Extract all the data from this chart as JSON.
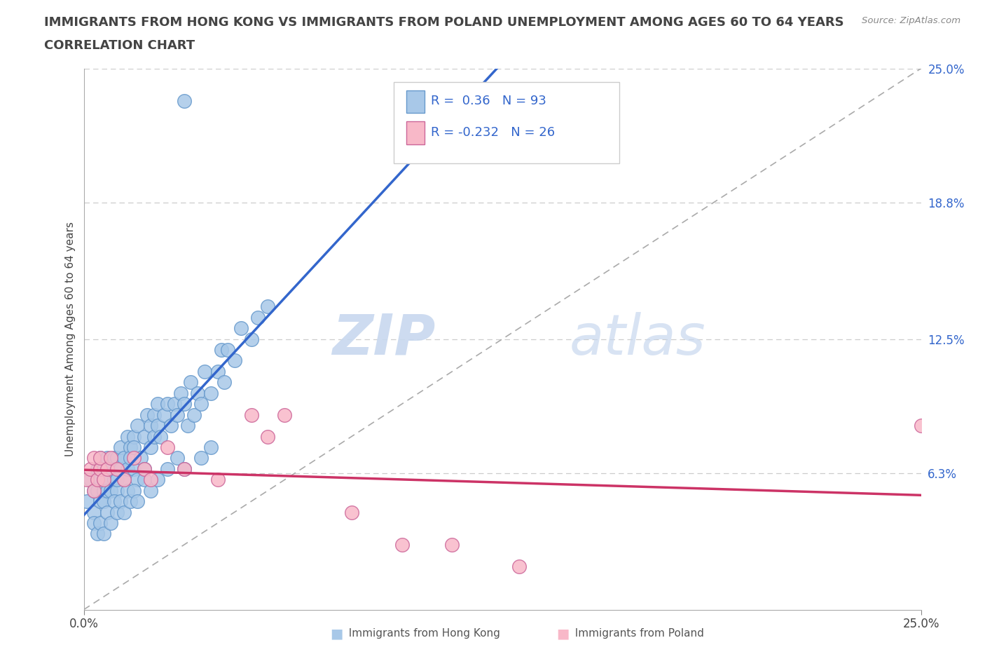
{
  "title_line1": "IMMIGRANTS FROM HONG KONG VS IMMIGRANTS FROM POLAND UNEMPLOYMENT AMONG AGES 60 TO 64 YEARS",
  "title_line2": "CORRELATION CHART",
  "source_text": "Source: ZipAtlas.com",
  "ylabel": "Unemployment Among Ages 60 to 64 years",
  "xlim": [
    0.0,
    0.25
  ],
  "ylim": [
    0.0,
    0.25
  ],
  "ytick_right_labels": [
    "25.0%",
    "18.8%",
    "12.5%",
    "6.3%"
  ],
  "ytick_right_values": [
    0.25,
    0.188,
    0.125,
    0.063
  ],
  "hk_color": "#a8c8e8",
  "hk_edge_color": "#6699cc",
  "poland_color": "#f8b8c8",
  "poland_edge_color": "#cc6699",
  "hk_R": 0.36,
  "hk_N": 93,
  "poland_R": -0.232,
  "poland_N": 26,
  "hk_line_color": "#3366cc",
  "poland_line_color": "#cc3366",
  "diag_line_color": "#aaaaaa",
  "watermark_color": "#d0dff0",
  "background_color": "#ffffff",
  "title_color": "#444444",
  "axis_label_color": "#444444",
  "right_tick_color": "#3366cc",
  "legend_text_color": "#3366cc",
  "hk_scatter_x": [
    0.001,
    0.002,
    0.003,
    0.003,
    0.004,
    0.004,
    0.005,
    0.005,
    0.005,
    0.006,
    0.006,
    0.006,
    0.007,
    0.007,
    0.007,
    0.008,
    0.008,
    0.009,
    0.009,
    0.01,
    0.01,
    0.01,
    0.01,
    0.011,
    0.011,
    0.012,
    0.012,
    0.013,
    0.013,
    0.014,
    0.014,
    0.015,
    0.015,
    0.015,
    0.016,
    0.016,
    0.017,
    0.018,
    0.018,
    0.019,
    0.02,
    0.02,
    0.021,
    0.021,
    0.022,
    0.022,
    0.023,
    0.024,
    0.025,
    0.026,
    0.027,
    0.028,
    0.029,
    0.03,
    0.031,
    0.032,
    0.033,
    0.034,
    0.035,
    0.036,
    0.038,
    0.04,
    0.041,
    0.042,
    0.043,
    0.045,
    0.047,
    0.05,
    0.052,
    0.055,
    0.003,
    0.004,
    0.005,
    0.006,
    0.007,
    0.008,
    0.009,
    0.01,
    0.011,
    0.012,
    0.013,
    0.014,
    0.015,
    0.016,
    0.018,
    0.02,
    0.022,
    0.025,
    0.028,
    0.03,
    0.035,
    0.038,
    0.03
  ],
  "hk_scatter_y": [
    0.05,
    0.06,
    0.055,
    0.045,
    0.065,
    0.055,
    0.06,
    0.05,
    0.07,
    0.055,
    0.065,
    0.05,
    0.06,
    0.055,
    0.07,
    0.065,
    0.055,
    0.07,
    0.06,
    0.065,
    0.07,
    0.055,
    0.06,
    0.075,
    0.065,
    0.07,
    0.06,
    0.08,
    0.065,
    0.075,
    0.07,
    0.08,
    0.065,
    0.075,
    0.085,
    0.06,
    0.07,
    0.08,
    0.065,
    0.09,
    0.085,
    0.075,
    0.09,
    0.08,
    0.085,
    0.095,
    0.08,
    0.09,
    0.095,
    0.085,
    0.095,
    0.09,
    0.1,
    0.095,
    0.085,
    0.105,
    0.09,
    0.1,
    0.095,
    0.11,
    0.1,
    0.11,
    0.12,
    0.105,
    0.12,
    0.115,
    0.13,
    0.125,
    0.135,
    0.14,
    0.04,
    0.035,
    0.04,
    0.035,
    0.045,
    0.04,
    0.05,
    0.045,
    0.05,
    0.045,
    0.055,
    0.05,
    0.055,
    0.05,
    0.06,
    0.055,
    0.06,
    0.065,
    0.07,
    0.065,
    0.07,
    0.075,
    0.235
  ],
  "poland_scatter_x": [
    0.001,
    0.002,
    0.003,
    0.003,
    0.004,
    0.005,
    0.005,
    0.006,
    0.007,
    0.008,
    0.01,
    0.012,
    0.015,
    0.018,
    0.02,
    0.025,
    0.03,
    0.04,
    0.05,
    0.055,
    0.06,
    0.08,
    0.095,
    0.11,
    0.13,
    0.25
  ],
  "poland_scatter_y": [
    0.06,
    0.065,
    0.055,
    0.07,
    0.06,
    0.065,
    0.07,
    0.06,
    0.065,
    0.07,
    0.065,
    0.06,
    0.07,
    0.065,
    0.06,
    0.075,
    0.065,
    0.06,
    0.09,
    0.08,
    0.09,
    0.045,
    0.03,
    0.03,
    0.02,
    0.085
  ]
}
